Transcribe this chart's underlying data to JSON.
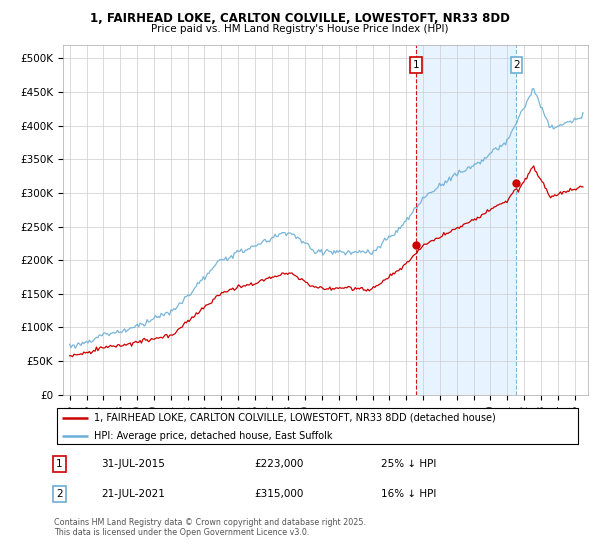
{
  "title_line1": "1, FAIRHEAD LOKE, CARLTON COLVILLE, LOWESTOFT, NR33 8DD",
  "title_line2": "Price paid vs. HM Land Registry's House Price Index (HPI)",
  "legend_entry1": "1, FAIRHEAD LOKE, CARLTON COLVILLE, LOWESTOFT, NR33 8DD (detached house)",
  "legend_entry2": "HPI: Average price, detached house, East Suffolk",
  "sale1_date": "31-JUL-2015",
  "sale1_price": "£223,000",
  "sale1_note": "25% ↓ HPI",
  "sale2_date": "21-JUL-2021",
  "sale2_price": "£315,000",
  "sale2_note": "16% ↓ HPI",
  "footer": "Contains HM Land Registry data © Crown copyright and database right 2025.\nThis data is licensed under the Open Government Licence v3.0.",
  "hpi_color": "#6baed6",
  "price_color": "#cc0000",
  "marker1_x": 2015.58,
  "marker1_y": 223000,
  "marker2_x": 2021.55,
  "marker2_y": 315000,
  "vline1_color": "#cc0000",
  "vline2_color": "#6baed6",
  "shade_color": "#ddeeff",
  "ylim": [
    0,
    520000
  ],
  "xlim_start": 1994.6,
  "xlim_end": 2025.8,
  "background_color": "#ffffff",
  "grid_color": "#cccccc",
  "label1_box_color": "#cc0000",
  "label2_box_color": "#6baed6"
}
